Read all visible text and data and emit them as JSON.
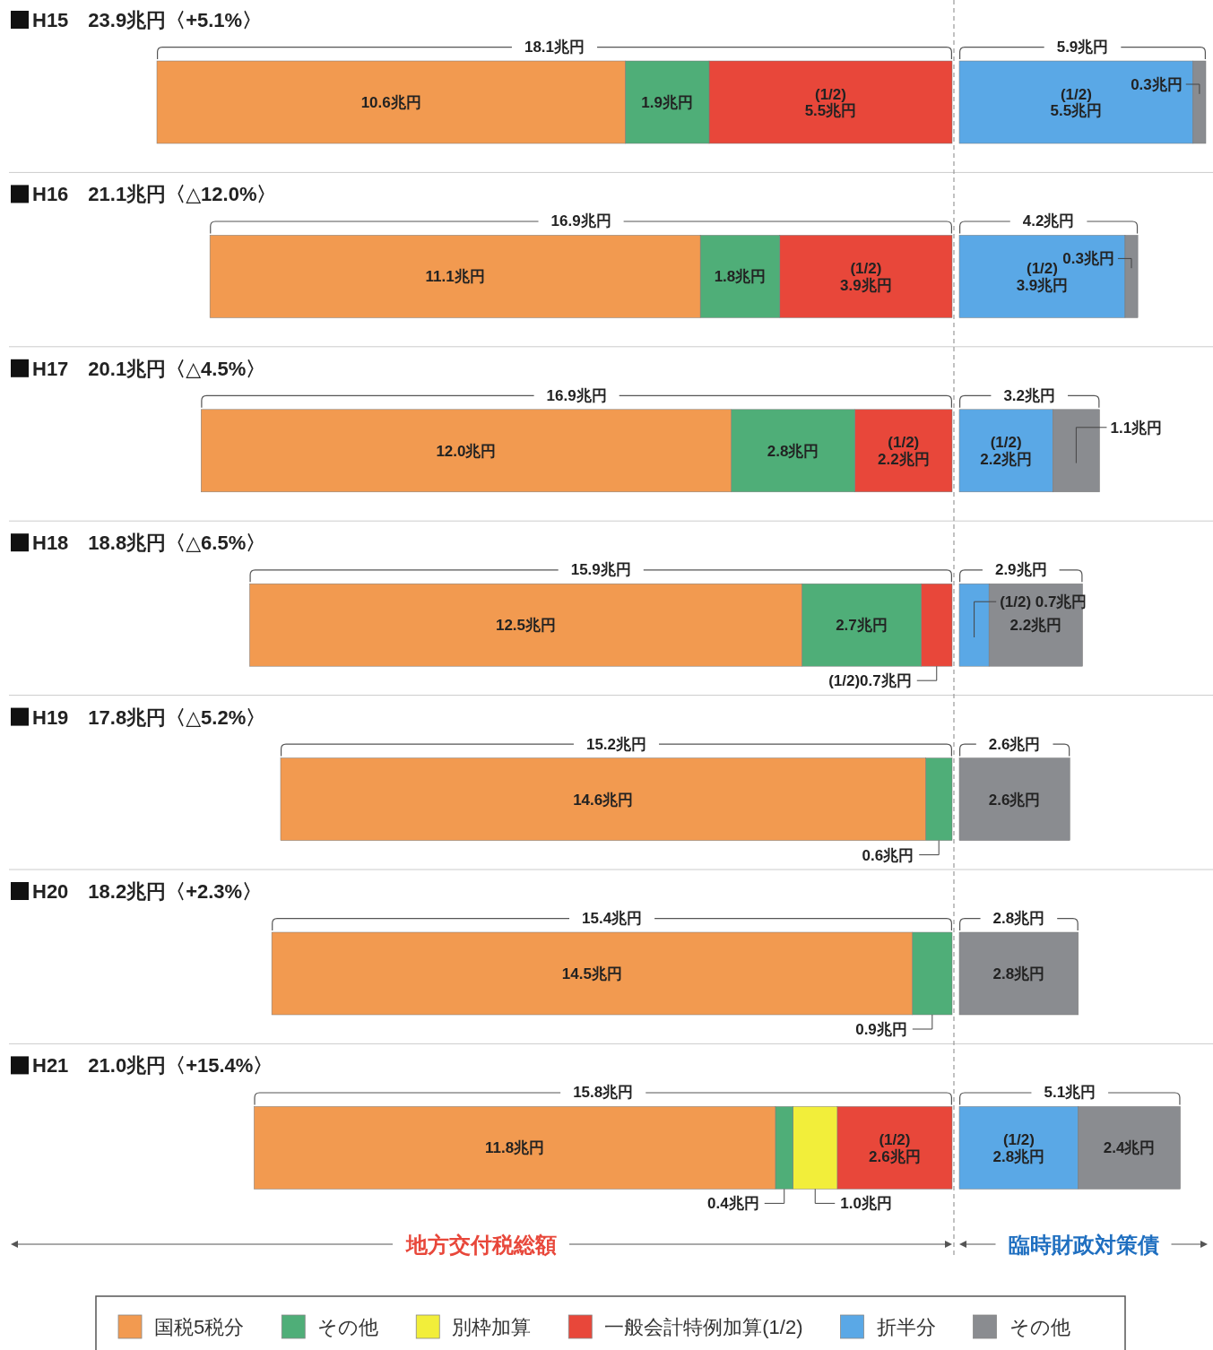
{
  "chart_data": [
    {
      "type": "bar",
      "orientation": "horizontal",
      "stacked": true,
      "categories": [
        "H15　23.9兆円〈+5.1%〉",
        "H16　21.1兆円〈△12.0%〉",
        "H17　20.1兆円〈△4.5%〉",
        "H18　18.8兆円〈△6.5%〉",
        "H19　17.8兆円〈△5.2%〉",
        "H20　18.2兆円〈+2.3%〉",
        "H21　21.0兆円〈+15.4%〉"
      ],
      "xlim": [
        18.0,
        0
      ],
      "xlabel": "地方交付税総額",
      "series": [
        {
          "name": "一般会計特例加算(1/2)",
          "color": "#e8473a",
          "values": [
            5.5,
            3.9,
            2.2,
            0.7,
            null,
            null,
            2.6
          ],
          "value_labels": [
            "(1/2)\n5.5兆円",
            "(1/2)\n3.9兆円",
            "(1/2)\n2.2兆円",
            "(1/2)0.7兆円",
            null,
            null,
            "(1/2)\n2.6兆円"
          ]
        },
        {
          "name": "別枠加算",
          "color": "#f2ee3a",
          "values": [
            null,
            null,
            null,
            null,
            null,
            null,
            1.0
          ],
          "value_labels": [
            null,
            null,
            null,
            null,
            null,
            null,
            "1.0兆円"
          ]
        },
        {
          "name": "その他",
          "color": "#4fae78",
          "values": [
            1.9,
            1.8,
            2.8,
            2.7,
            0.6,
            0.9,
            0.4
          ],
          "value_labels": [
            "1.9兆円",
            "1.8兆円",
            "2.8兆円",
            "2.7兆円",
            "0.6兆円",
            "0.9兆円",
            "0.4兆円"
          ]
        },
        {
          "name": "国税5税分",
          "color": "#f29a50",
          "values": [
            10.6,
            11.1,
            12.0,
            12.5,
            14.6,
            14.5,
            11.8
          ],
          "value_labels": [
            "10.6兆円",
            "11.1兆円",
            "12.0兆円",
            "12.5兆円",
            "14.6兆円",
            "14.5兆円",
            "11.8兆円"
          ]
        }
      ],
      "totals": [
        "18.1兆円",
        "16.9兆円",
        "16.9兆円",
        "15.9兆円",
        "15.2兆円",
        "15.4兆円",
        "15.8兆円"
      ],
      "ref_lines": [
        {
          "axis": "x",
          "value": 0,
          "color": "#999999",
          "line_style": "dashed"
        }
      ],
      "legend": "bottom"
    },
    {
      "type": "bar",
      "orientation": "horizontal",
      "stacked": true,
      "categories": [
        null,
        null,
        null,
        null,
        null,
        null,
        null
      ],
      "xlim": [
        0,
        5.8
      ],
      "xlabel": "臨時財政対策債",
      "series": [
        {
          "name": "折半分",
          "color": "#5aa8e6",
          "values": [
            5.5,
            3.9,
            2.2,
            0.7,
            null,
            null,
            2.8
          ],
          "value_labels": [
            "(1/2)\n5.5兆円",
            "(1/2)\n3.9兆円",
            "(1/2)\n2.2兆円",
            "(1/2) 0.7兆円",
            null,
            null,
            "(1/2)\n2.8兆円"
          ]
        },
        {
          "name": "その他",
          "color": "#8a8c90",
          "values": [
            0.3,
            0.3,
            1.1,
            2.2,
            2.6,
            2.8,
            2.4
          ],
          "value_labels": [
            "0.3兆円",
            "0.3兆円",
            "1.1兆円",
            "2.2兆円",
            "2.6兆円",
            "2.8兆円",
            "2.4兆円"
          ]
        }
      ],
      "totals": [
        "5.9兆円",
        "4.2兆円",
        "3.2兆円",
        "2.9兆円",
        "2.6兆円",
        "2.8兆円",
        "5.1兆円"
      ],
      "legend": "bottom"
    }
  ]
}
